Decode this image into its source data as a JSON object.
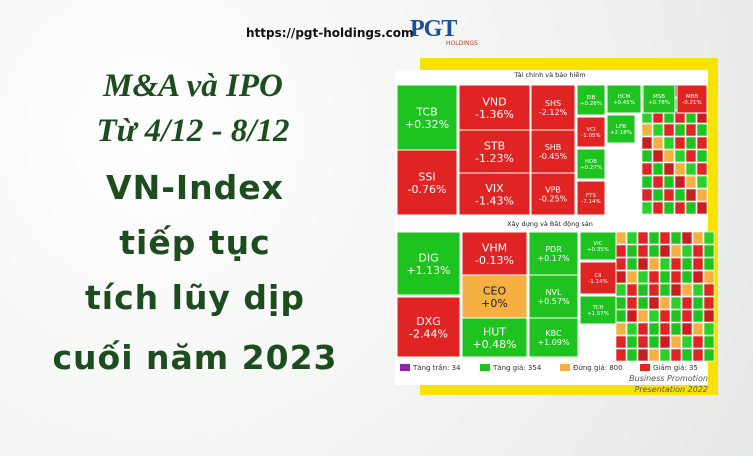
{
  "header": {
    "url": "https://pgt-holdings.com",
    "logo": "PGT",
    "logo_sub": "HOLDINGS"
  },
  "headline": [
    "M&A và IPO",
    "Từ 4/12 - 8/12",
    "VN-Index",
    "tiếp tục",
    "tích lũy dịp",
    "cuối năm 2023"
  ],
  "treemap": {
    "sections": [
      {
        "title": "Tài chính và bảo hiểm",
        "cells": [
          {
            "ticker": "TCB",
            "change": "+0.32%"
          },
          {
            "ticker": "SSI",
            "change": "-0.76%"
          },
          {
            "ticker": "VND",
            "change": "-1.36%"
          },
          {
            "ticker": "STB",
            "change": "-1.23%"
          },
          {
            "ticker": "VIX",
            "change": "-1.43%"
          },
          {
            "ticker": "SHS",
            "change": "-2.12%"
          },
          {
            "ticker": "SHB",
            "change": "-0.45%"
          },
          {
            "ticker": "VPB",
            "change": "-0.25%"
          },
          {
            "ticker": "EIB",
            "change": "+0.26%"
          },
          {
            "ticker": "HCM",
            "change": "+0.45%"
          },
          {
            "ticker": "MSB",
            "change": "+0.78%"
          },
          {
            "ticker": "MBB",
            "change": "-0.21%"
          },
          {
            "ticker": "VCI",
            "change": "-1.05%"
          },
          {
            "ticker": "LPB",
            "change": "+2.18%"
          },
          {
            "ticker": "HDB",
            "change": "+0.27%"
          },
          {
            "ticker": "FTS",
            "change": "-7.14%"
          }
        ]
      },
      {
        "title": "Xây dựng và Bất động sản",
        "cells": [
          {
            "ticker": "DIG",
            "change": "+1.13%"
          },
          {
            "ticker": "DXG",
            "change": "-2.44%"
          },
          {
            "ticker": "VHM",
            "change": "-0.13%"
          },
          {
            "ticker": "CEO",
            "change": "+0%"
          },
          {
            "ticker": "HUT",
            "change": "+0.48%"
          },
          {
            "ticker": "PDR",
            "change": "+0.17%"
          },
          {
            "ticker": "NVL",
            "change": "+0.57%"
          },
          {
            "ticker": "KBC",
            "change": "+1.09%"
          },
          {
            "ticker": "VIC",
            "change": "+0.35%"
          },
          {
            "ticker": "CII",
            "change": "-1.14%"
          },
          {
            "ticker": "TCH",
            "change": "+1.57%"
          }
        ]
      }
    ],
    "legend": [
      "Tăng trần: 34",
      "Tăng giá: 354",
      "Đứng giá: 800",
      "Giảm giá: 35"
    ]
  },
  "footer": [
    "Business Promotion",
    "Presentation 2022"
  ]
}
